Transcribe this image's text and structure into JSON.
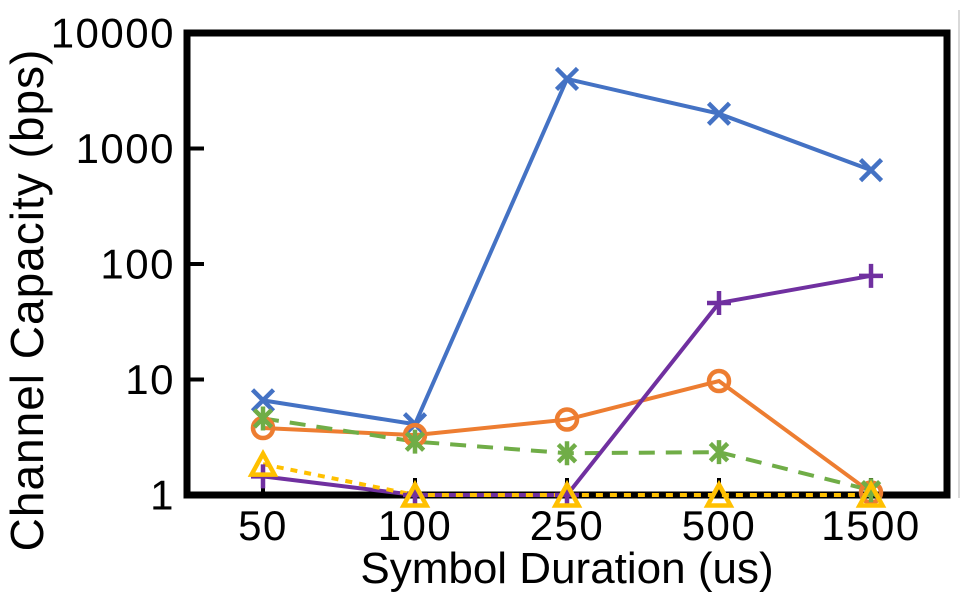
{
  "chart_data": {
    "type": "line",
    "title": "",
    "xlabel": "Symbol Duration (us)",
    "ylabel": "Channel Capacity (bps)",
    "x_scale": "categorical",
    "y_scale": "log",
    "ylim": [
      1,
      10000
    ],
    "categories": [
      "50",
      "100",
      "250",
      "500",
      "1500"
    ],
    "x_tick_labels": [
      "50",
      "100",
      "250",
      "500",
      "1500"
    ],
    "y_tick_labels": [
      "10000",
      "1000",
      "100",
      "10",
      "1"
    ],
    "grid": false,
    "legend": "none",
    "axis_color": "#000000",
    "background": "#ffffff",
    "series": [
      {
        "name": "blue-x-series",
        "marker": "x",
        "line_style": "solid",
        "color": "#4472C4",
        "values": [
          6.6,
          4.1,
          4000,
          2000,
          650
        ]
      },
      {
        "name": "orange-circle-series",
        "marker": "circle",
        "line_style": "solid",
        "color": "#ED7D31",
        "values": [
          3.8,
          3.3,
          4.5,
          9.7,
          1.05
        ]
      },
      {
        "name": "green-asterisk-series",
        "marker": "asterisk",
        "line_style": "dashed",
        "color": "#70AD47",
        "values": [
          4.6,
          2.9,
          2.3,
          2.35,
          1.1
        ]
      },
      {
        "name": "purple-plus-series",
        "marker": "plus",
        "line_style": "solid",
        "color": "#7030A0",
        "values": [
          1.45,
          1.0,
          1.0,
          46,
          79
        ]
      },
      {
        "name": "yellow-triangle-series",
        "marker": "triangle-up",
        "line_style": "dotted",
        "color": "#FFC000",
        "values": [
          1.85,
          1.0,
          1.0,
          1.0,
          1.0
        ]
      }
    ]
  },
  "decor": {
    "right_border_color": "#d9d9d9"
  }
}
